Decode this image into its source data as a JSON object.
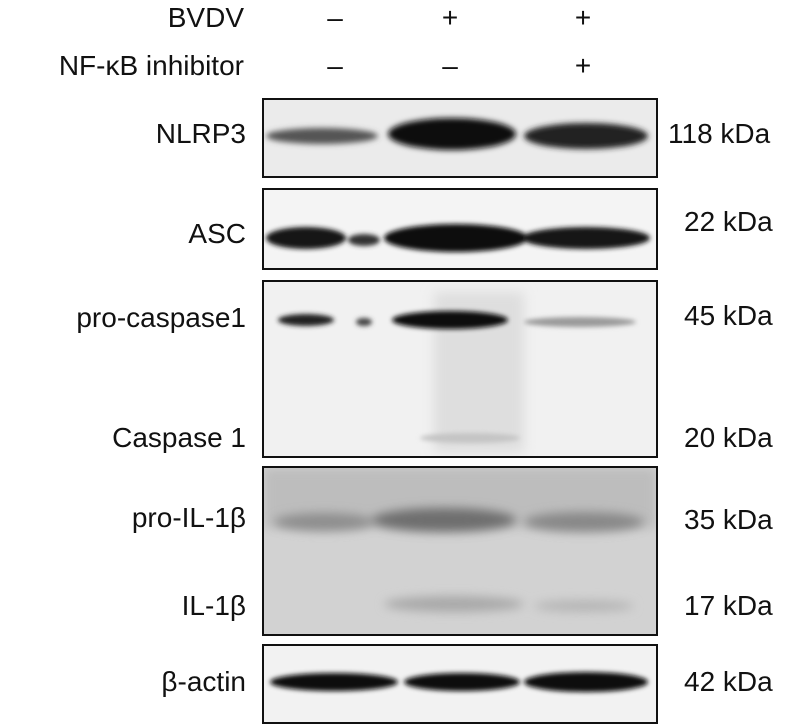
{
  "header": {
    "rows": [
      {
        "label": "BVDV",
        "signs": [
          "–",
          "+",
          "+"
        ]
      },
      {
        "label": "NF-κB inhibitor",
        "signs": [
          "–",
          "–",
          "+"
        ]
      }
    ]
  },
  "panels": [
    {
      "bands": [
        {
          "label": "NLRP3",
          "size": "118 kDa",
          "intensities": [
            0.35,
            0.95,
            0.75
          ]
        }
      ]
    },
    {
      "bands": [
        {
          "label": "ASC",
          "size": "22 kDa",
          "intensities": [
            0.85,
            1.0,
            0.85
          ]
        }
      ]
    },
    {
      "bands": [
        {
          "label": "pro-caspase1",
          "size": "45 kDa",
          "intensities": [
            0.55,
            0.9,
            0.2
          ]
        },
        {
          "label": "Caspase 1",
          "size": "20 kDa",
          "intensities": [
            0.0,
            0.15,
            0.0
          ]
        }
      ]
    },
    {
      "bands": [
        {
          "label": "pro-IL-1β",
          "size": "35 kDa",
          "intensities": [
            0.35,
            0.55,
            0.4
          ]
        },
        {
          "label": "IL-1β",
          "size": "17 kDa",
          "intensities": [
            0.05,
            0.2,
            0.1
          ]
        }
      ]
    },
    {
      "bands": [
        {
          "label": "β-actin",
          "size": "42 kDa",
          "intensities": [
            0.9,
            0.9,
            0.95
          ]
        }
      ]
    }
  ]
}
